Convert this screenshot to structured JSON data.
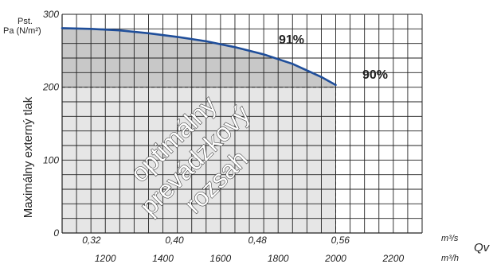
{
  "chart_data": {
    "type": "line",
    "ylabel": "Maximálny externý tlak",
    "ylabel_top": [
      "Pst.",
      "Pa (N/m²)"
    ],
    "xlabel": "Qv",
    "x_unit_top": "m³/s",
    "x_unit_bottom": "m³/h",
    "ylim": [
      0,
      300
    ],
    "xlim_m3h": [
      1050,
      2300
    ],
    "y_ticks": [
      "0",
      "100",
      "200",
      "300"
    ],
    "y_tick_values": [
      0,
      100,
      200,
      300
    ],
    "x_ticks_top": [
      "0,32",
      "0,40",
      "0,48",
      "0,56"
    ],
    "x_ticks_top_values": [
      1152,
      1440,
      1728,
      2016
    ],
    "x_ticks_bottom": [
      "1200",
      "1400",
      "1600",
      "1800",
      "2000",
      "2200"
    ],
    "x_ticks_bottom_values": [
      1200,
      1400,
      1600,
      1800,
      2000,
      2200
    ],
    "grid": true,
    "series": [
      {
        "color": "#1f4e9a",
        "x": [
          1050,
          1150,
          1250,
          1350,
          1450,
          1550,
          1650,
          1750,
          1850,
          1950,
          2000
        ],
        "y": [
          281,
          280,
          278,
          274,
          269,
          263,
          255,
          245,
          232,
          214,
          203
        ]
      }
    ],
    "optimal_range": {
      "pressure_limit": 200,
      "flow_limit": 2000
    },
    "annotations": {
      "eff_91": "91%",
      "eff_90": "90%",
      "zone_lines": [
        "optimálny",
        "prevádzkový",
        "rozsah"
      ]
    }
  },
  "colors": {
    "curve": "#1f4e9a",
    "upper_zone": "#c8c8c8",
    "lower_zone": "#e6e6e6",
    "grid": "#222222"
  }
}
